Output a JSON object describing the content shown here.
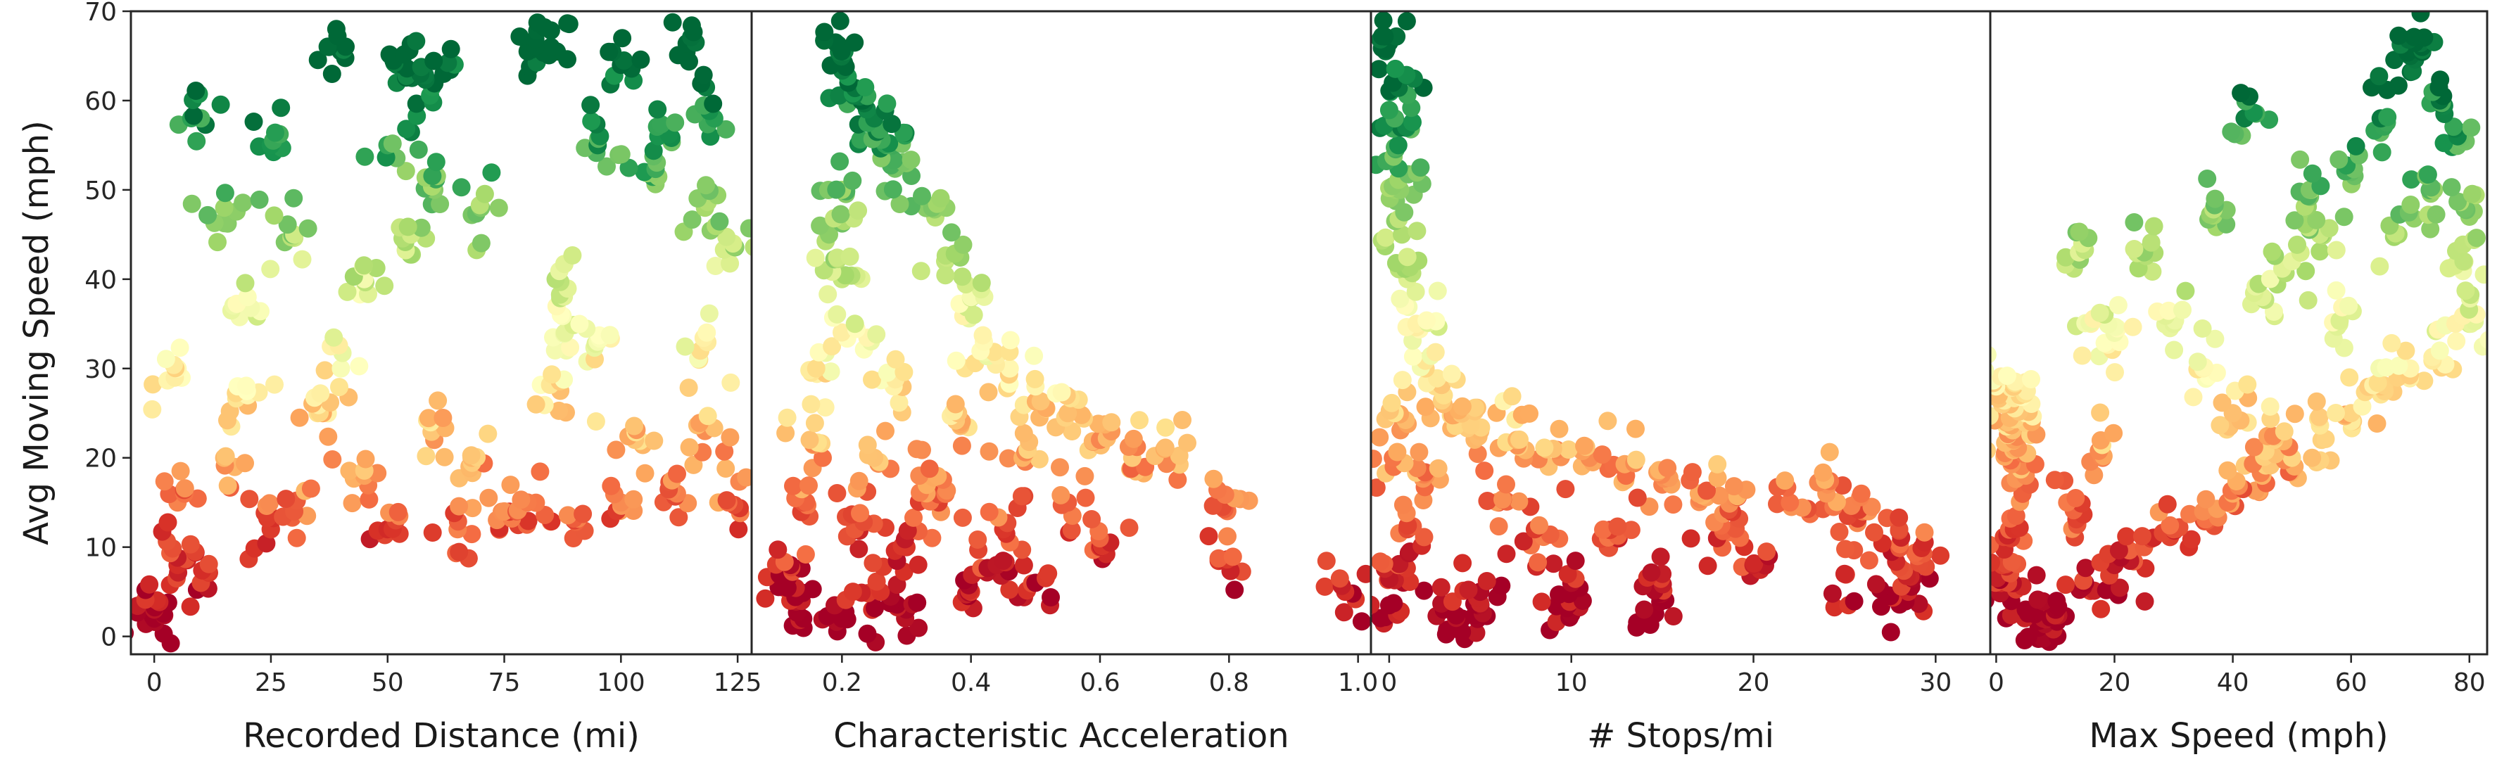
{
  "chart_data": [
    {
      "type": "scatter",
      "title": "",
      "xlabel": "Recorded Distance (mi)",
      "ylabel": "Avg Moving Speed (mph)",
      "xlim": [
        -5,
        128
      ],
      "ylim": [
        -2,
        70
      ],
      "xticks": [
        0,
        25,
        50,
        75,
        100,
        125
      ],
      "yticks": [
        0,
        10,
        20,
        30,
        40,
        50,
        60,
        70
      ],
      "sample_points": [
        [
          40,
          65.5
        ],
        [
          52,
          64
        ],
        [
          57,
          63
        ],
        [
          62,
          63
        ],
        [
          85,
          66
        ],
        [
          116,
          66.5
        ],
        [
          80,
          65.5
        ],
        [
          100,
          64
        ],
        [
          95,
          55
        ],
        [
          108,
          56
        ],
        [
          120,
          58
        ],
        [
          118,
          48
        ],
        [
          124,
          44
        ],
        [
          105,
          52
        ],
        [
          86,
          40
        ],
        [
          88,
          34
        ],
        [
          95,
          33
        ],
        [
          87,
          27.5
        ],
        [
          68,
          20
        ],
        [
          103,
          22
        ],
        [
          118,
          23
        ],
        [
          117,
          32
        ],
        [
          30,
          45
        ],
        [
          45,
          40
        ],
        [
          50,
          55
        ],
        [
          60,
          50
        ],
        [
          20,
          38
        ],
        [
          15,
          48
        ],
        [
          10,
          58
        ],
        [
          25,
          55
        ],
        [
          55,
          45
        ],
        [
          70,
          48
        ],
        [
          40,
          30
        ],
        [
          35,
          25
        ],
        [
          15,
          20
        ],
        [
          5,
          15
        ],
        [
          25,
          12
        ],
        [
          50,
          12
        ],
        [
          75,
          14
        ],
        [
          90,
          13
        ],
        [
          100,
          15
        ],
        [
          112,
          16
        ],
        [
          123,
          15
        ],
        [
          5,
          8
        ],
        [
          10,
          6
        ],
        [
          0,
          3
        ],
        [
          0,
          2
        ],
        [
          30,
          14
        ],
        [
          60,
          22
        ],
        [
          5,
          30
        ],
        [
          20,
          27
        ],
        [
          45,
          18
        ],
        [
          80,
          15
        ],
        [
          65,
          12
        ]
      ]
    },
    {
      "type": "scatter",
      "title": "",
      "xlabel": "Characteristic Acceleration",
      "ylabel": "",
      "xlim": [
        0.06,
        1.02
      ],
      "ylim": [
        -2,
        70
      ],
      "xticks": [
        0.2,
        0.4,
        0.6,
        0.8,
        1.0
      ],
      "xtick_labels": [
        "0.2",
        "0.4",
        "0.6",
        "0.8",
        "1.0"
      ],
      "sample_points": [
        [
          0.19,
          66.5
        ],
        [
          0.21,
          62
        ],
        [
          0.23,
          60
        ],
        [
          0.25,
          58
        ],
        [
          0.27,
          55
        ],
        [
          0.3,
          53
        ],
        [
          0.34,
          48
        ],
        [
          0.36,
          42
        ],
        [
          0.4,
          38
        ],
        [
          0.42,
          33
        ],
        [
          0.46,
          30
        ],
        [
          0.5,
          28
        ],
        [
          0.55,
          25
        ],
        [
          0.6,
          22
        ],
        [
          0.65,
          20
        ],
        [
          0.7,
          21
        ],
        [
          0.79,
          14.5
        ],
        [
          0.79,
          8.5
        ],
        [
          0.98,
          5
        ],
        [
          0.18,
          45
        ],
        [
          0.2,
          50
        ],
        [
          0.2,
          40
        ],
        [
          0.22,
          35
        ],
        [
          0.16,
          30
        ],
        [
          0.15,
          22
        ],
        [
          0.14,
          15
        ],
        [
          0.12,
          8
        ],
        [
          0.12,
          4
        ],
        [
          0.14,
          2
        ],
        [
          0.2,
          2
        ],
        [
          0.3,
          3
        ],
        [
          0.4,
          5
        ],
        [
          0.5,
          6
        ],
        [
          0.45,
          12
        ],
        [
          0.35,
          15
        ],
        [
          0.3,
          10
        ],
        [
          0.25,
          20
        ],
        [
          0.28,
          28
        ],
        [
          0.55,
          15
        ],
        [
          0.6,
          10
        ],
        [
          0.48,
          20
        ],
        [
          0.38,
          25
        ],
        [
          0.26,
          5
        ],
        [
          0.22,
          12
        ],
        [
          0.32,
          18
        ],
        [
          0.44,
          8
        ]
      ]
    },
    {
      "type": "scatter",
      "title": "",
      "xlabel": "# Stops/mi",
      "ylabel": "",
      "xlim": [
        -1,
        33
      ],
      "ylim": [
        -2,
        70
      ],
      "xticks": [
        0,
        10,
        20,
        30
      ],
      "sample_points": [
        [
          0,
          66.5
        ],
        [
          0.2,
          62
        ],
        [
          0.3,
          58
        ],
        [
          0.5,
          55
        ],
        [
          0.6,
          50
        ],
        [
          0.7,
          45
        ],
        [
          1,
          40
        ],
        [
          1.5,
          35
        ],
        [
          2,
          30
        ],
        [
          3,
          27
        ],
        [
          4,
          25
        ],
        [
          5,
          23
        ],
        [
          7,
          22
        ],
        [
          9,
          21
        ],
        [
          11,
          20
        ],
        [
          13,
          18
        ],
        [
          15,
          17
        ],
        [
          17,
          16
        ],
        [
          19,
          15.5
        ],
        [
          22,
          15
        ],
        [
          24,
          16
        ],
        [
          26,
          14
        ],
        [
          28,
          12
        ],
        [
          29,
          9
        ],
        [
          28.5,
          5
        ],
        [
          27.5,
          4.5
        ],
        [
          25,
          7
        ],
        [
          20,
          8
        ],
        [
          15,
          7
        ],
        [
          10,
          6
        ],
        [
          5,
          5
        ],
        [
          3,
          3
        ],
        [
          0,
          3.5
        ],
        [
          0.5,
          8
        ],
        [
          1,
          12
        ],
        [
          2,
          18
        ],
        [
          8,
          12
        ],
        [
          12,
          10
        ],
        [
          18,
          11
        ],
        [
          6,
          15
        ],
        [
          0.3,
          25
        ],
        [
          0.2,
          20
        ],
        [
          4,
          2
        ],
        [
          10,
          2.5
        ],
        [
          14,
          3
        ]
      ]
    },
    {
      "type": "scatter",
      "title": "",
      "xlabel": "Max Speed (mph)",
      "ylabel": "",
      "xlim": [
        -1,
        83
      ],
      "ylim": [
        -2,
        70
      ],
      "xticks": [
        0,
        20,
        40,
        60,
        80
      ],
      "sample_points": [
        [
          0,
          28
        ],
        [
          1,
          26
        ],
        [
          2,
          24
        ],
        [
          3,
          22
        ],
        [
          4,
          27
        ],
        [
          6,
          24
        ],
        [
          5,
          18
        ],
        [
          3,
          12
        ],
        [
          1,
          8
        ],
        [
          2,
          6
        ],
        [
          5,
          3
        ],
        [
          8,
          2
        ],
        [
          10,
          3
        ],
        [
          15,
          6
        ],
        [
          20,
          8
        ],
        [
          25,
          10
        ],
        [
          30,
          12
        ],
        [
          35,
          14
        ],
        [
          40,
          16
        ],
        [
          45,
          18
        ],
        [
          50,
          20
        ],
        [
          55,
          22
        ],
        [
          60,
          25
        ],
        [
          65,
          28
        ],
        [
          70,
          30
        ],
        [
          75,
          32
        ],
        [
          80,
          35
        ],
        [
          80,
          47
        ],
        [
          78,
          56
        ],
        [
          75,
          60
        ],
        [
          72,
          66
        ],
        [
          70,
          65
        ],
        [
          65,
          58
        ],
        [
          60,
          52
        ],
        [
          55,
          45
        ],
        [
          50,
          42
        ],
        [
          45,
          38
        ],
        [
          37,
          49
        ],
        [
          42,
          58
        ],
        [
          53,
          50
        ],
        [
          14,
          43
        ],
        [
          16,
          35
        ],
        [
          20,
          34
        ],
        [
          25,
          43
        ],
        [
          30,
          35
        ],
        [
          35,
          30
        ],
        [
          40,
          25
        ],
        [
          47,
          22
        ],
        [
          58,
          35
        ],
        [
          68,
          45
        ],
        [
          74,
          50
        ],
        [
          79,
          42
        ],
        [
          12,
          15
        ],
        [
          18,
          20
        ]
      ]
    }
  ],
  "colormap": {
    "name": "RdYlGn",
    "stops": [
      "#a50026",
      "#d73027",
      "#f46d43",
      "#fdae61",
      "#fee08b",
      "#ffffbf",
      "#d9ef8b",
      "#a6d96a",
      "#66bd63",
      "#1a9850",
      "#006837"
    ],
    "color_value": "avg_moving_speed"
  }
}
